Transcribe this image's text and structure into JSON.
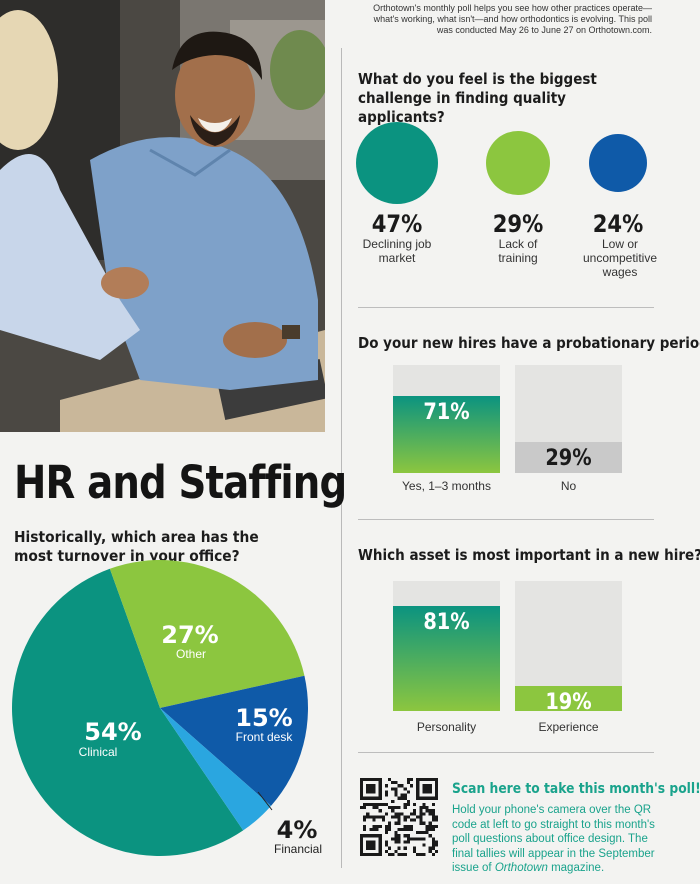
{
  "intro_text": "Orthotown's monthly poll helps you see how other practices operate—what's working, what isn't—and how orthodontics is evolving. This poll was conducted May 26 to June 27 on Orthotown.com.",
  "page_title": "HR and Staffing",
  "colors": {
    "teal": "#0b9380",
    "green": "#8cc63f",
    "blue": "#0f5aa8",
    "light_blue": "#2aa6e0",
    "gray_bar": "#c9c9c9",
    "bar_bg": "#e4e4e2"
  },
  "photo": {
    "icon": "handshake-photo"
  },
  "turnover": {
    "question": "Historically, which area has the most turnover in your office?"
  },
  "applicants": {
    "question": "What do you feel is the biggest challenge in finding quality applicants?"
  },
  "probation": {
    "question": "Do your new hires have a probationary period?"
  },
  "asset": {
    "question": "Which asset is most important in a new hire?"
  },
  "chart_data": [
    {
      "type": "pie",
      "title": "Historically, which area has the most turnover in your office?",
      "categories": [
        "Clinical",
        "Other",
        "Front desk",
        "Financial"
      ],
      "values": [
        54,
        27,
        15,
        4
      ],
      "value_labels": [
        "54%",
        "27%",
        "15%",
        "4%"
      ],
      "colors": [
        "#0b9380",
        "#8cc63f",
        "#0f5aa8",
        "#2aa6e0"
      ]
    },
    {
      "type": "bubble",
      "title": "What do you feel is the biggest challenge in finding quality applicants?",
      "categories": [
        "Declining job market",
        "Lack of training",
        "Low or uncompetitive wages"
      ],
      "values": [
        47,
        29,
        24
      ],
      "value_labels": [
        "47%",
        "29%",
        "24%"
      ],
      "colors": [
        "#0b9380",
        "#8cc63f",
        "#0f5aa8"
      ]
    },
    {
      "type": "bar",
      "title": "Do your new hires have a probationary period?",
      "categories": [
        "Yes, 1–3 months",
        "No"
      ],
      "values": [
        71,
        29
      ],
      "value_labels": [
        "71%",
        "29%"
      ],
      "ylim": [
        0,
        100
      ]
    },
    {
      "type": "bar",
      "title": "Which asset is most important in a new hire?",
      "categories": [
        "Personality",
        "Experience"
      ],
      "values": [
        81,
        19
      ],
      "value_labels": [
        "81%",
        "19%"
      ],
      "ylim": [
        0,
        100
      ]
    }
  ],
  "qr": {
    "icon": "qr-code-icon",
    "title": "Scan here to take this month's poll!",
    "body_before": "Hold your phone's camera over the QR code at left to go straight to this month's poll questions about office design. The final tallies will appear in the September issue of ",
    "body_em": "Orthotown",
    "body_after": " magazine."
  }
}
